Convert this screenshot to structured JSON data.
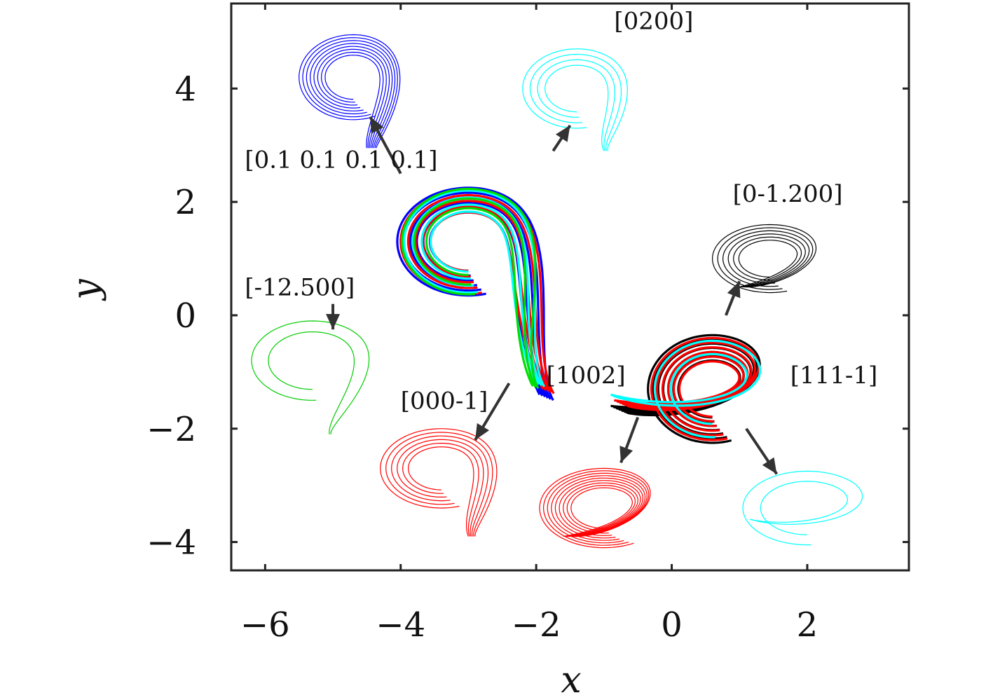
{
  "chart_data": {
    "type": "line",
    "xlabel": "x",
    "ylabel": "y",
    "xlim": [
      -6.5,
      3.5
    ],
    "ylim": [
      -4.5,
      5.5
    ],
    "xticks": [
      -6,
      -4,
      -2,
      0,
      2
    ],
    "yticks": [
      -4,
      -2,
      0,
      2,
      4
    ],
    "xtick_labels": [
      "−6",
      "−4",
      "−2",
      "0",
      "2"
    ],
    "ytick_labels": [
      "−4",
      "−2",
      "0",
      "2",
      "4"
    ],
    "grid": false,
    "legend": "none",
    "main_attractors": [
      {
        "cx": -3.0,
        "cy": 1.3,
        "rx": 1.05,
        "ry": 0.95,
        "tip_x": -1.95,
        "tip_y": -1.4,
        "rings": 6,
        "color": "#0000ff"
      },
      {
        "cx": -3.0,
        "cy": 1.3,
        "rx": 1.0,
        "ry": 0.92,
        "tip_x": -1.9,
        "tip_y": -1.3,
        "rings": 5,
        "color": "#ff0000"
      },
      {
        "cx": -3.0,
        "cy": 1.3,
        "rx": 0.95,
        "ry": 0.9,
        "tip_x": -2.0,
        "tip_y": -1.2,
        "rings": 4,
        "color": "#00ffff"
      },
      {
        "cx": -3.0,
        "cy": 1.3,
        "rx": 0.98,
        "ry": 0.93,
        "tip_x": -2.05,
        "tip_y": -1.25,
        "rings": 3,
        "color": "#00dd00"
      },
      {
        "cx": 0.6,
        "cy": -1.3,
        "rx": 0.95,
        "ry": 0.95,
        "tip_x": -0.9,
        "tip_y": -1.6,
        "rings": 7,
        "color": "#000000"
      },
      {
        "cx": 0.6,
        "cy": -1.3,
        "rx": 0.9,
        "ry": 0.9,
        "tip_x": -0.85,
        "tip_y": -1.5,
        "rings": 6,
        "color": "#ff0000"
      },
      {
        "cx": 0.6,
        "cy": -1.3,
        "rx": 0.85,
        "ry": 0.85,
        "tip_x": -0.9,
        "tip_y": -1.4,
        "rings": 2,
        "color": "#00ffff"
      }
    ],
    "insets": [
      {
        "label": "[0.1 0.1 0.1 0.1]",
        "color": "#0000ff",
        "cx": -4.7,
        "cy": 4.2,
        "rx": 0.8,
        "ry": 0.75,
        "tip_x": -4.5,
        "tip_y": 2.95,
        "rings": 8
      },
      {
        "label": "[0200]",
        "color": "#00ffff",
        "cx": -1.4,
        "cy": 4.0,
        "rx": 0.8,
        "ry": 0.7,
        "tip_x": -1.0,
        "tip_y": 2.9,
        "rings": 4
      },
      {
        "label": "[0-1.200]",
        "color": "#000000",
        "cx": 1.45,
        "cy": 1.0,
        "rx": 0.85,
        "ry": 0.6,
        "tip_x": 1.0,
        "tip_y": 0.5,
        "rings": 6
      },
      {
        "label": "[-12.500]",
        "color": "#00cc00",
        "cx": -5.3,
        "cy": -0.8,
        "rx": 0.9,
        "ry": 0.7,
        "tip_x": -5.05,
        "tip_y": -2.1,
        "rings": 2
      },
      {
        "label": "[000-1]",
        "color": "#ff0000",
        "cx": -3.4,
        "cy": -2.7,
        "rx": 0.9,
        "ry": 0.7,
        "tip_x": -3.0,
        "tip_y": -3.9,
        "rings": 6
      },
      {
        "label": "[1002]",
        "color": "#ff0000",
        "cx": -1.0,
        "cy": -3.4,
        "rx": 0.95,
        "ry": 0.7,
        "tip_x": -1.6,
        "tip_y": -3.9,
        "rings": 9
      },
      {
        "label": "[111-1]",
        "color": "#00ffff",
        "cx": 2.0,
        "cy": -3.4,
        "rx": 0.95,
        "ry": 0.65,
        "tip_x": 1.15,
        "tip_y": -3.6,
        "rings": 2
      }
    ],
    "annotations": [
      {
        "text": "[0.1 0.1 0.1 0.1]",
        "x": -6.3,
        "y": 2.6
      },
      {
        "text": "[0200]",
        "x": -0.85,
        "y": 5.05
      },
      {
        "text": "[0-1.200]",
        "x": 0.9,
        "y": 2.0
      },
      {
        "text": "[-12.500]",
        "x": -6.3,
        "y": 0.35
      },
      {
        "text": "[000-1]",
        "x": -4.0,
        "y": -1.65
      },
      {
        "text": "[1002]",
        "x": -1.85,
        "y": -1.2
      },
      {
        "text": "[111-1]",
        "x": 1.75,
        "y": -1.2
      }
    ],
    "arrows": [
      {
        "from": [
          -4.0,
          2.5
        ],
        "to": [
          -4.45,
          3.5
        ]
      },
      {
        "from": [
          -1.75,
          2.9
        ],
        "to": [
          -1.5,
          3.35
        ]
      },
      {
        "from": [
          0.8,
          0.0
        ],
        "to": [
          1.0,
          0.6
        ]
      },
      {
        "from": [
          -5.0,
          0.2
        ],
        "to": [
          -5.0,
          -0.25
        ]
      },
      {
        "from": [
          -2.4,
          -1.2
        ],
        "to": [
          -2.9,
          -2.2
        ]
      },
      {
        "from": [
          -0.5,
          -1.8
        ],
        "to": [
          -0.75,
          -2.6
        ]
      },
      {
        "from": [
          1.1,
          -2.0
        ],
        "to": [
          1.55,
          -2.8
        ]
      }
    ]
  }
}
